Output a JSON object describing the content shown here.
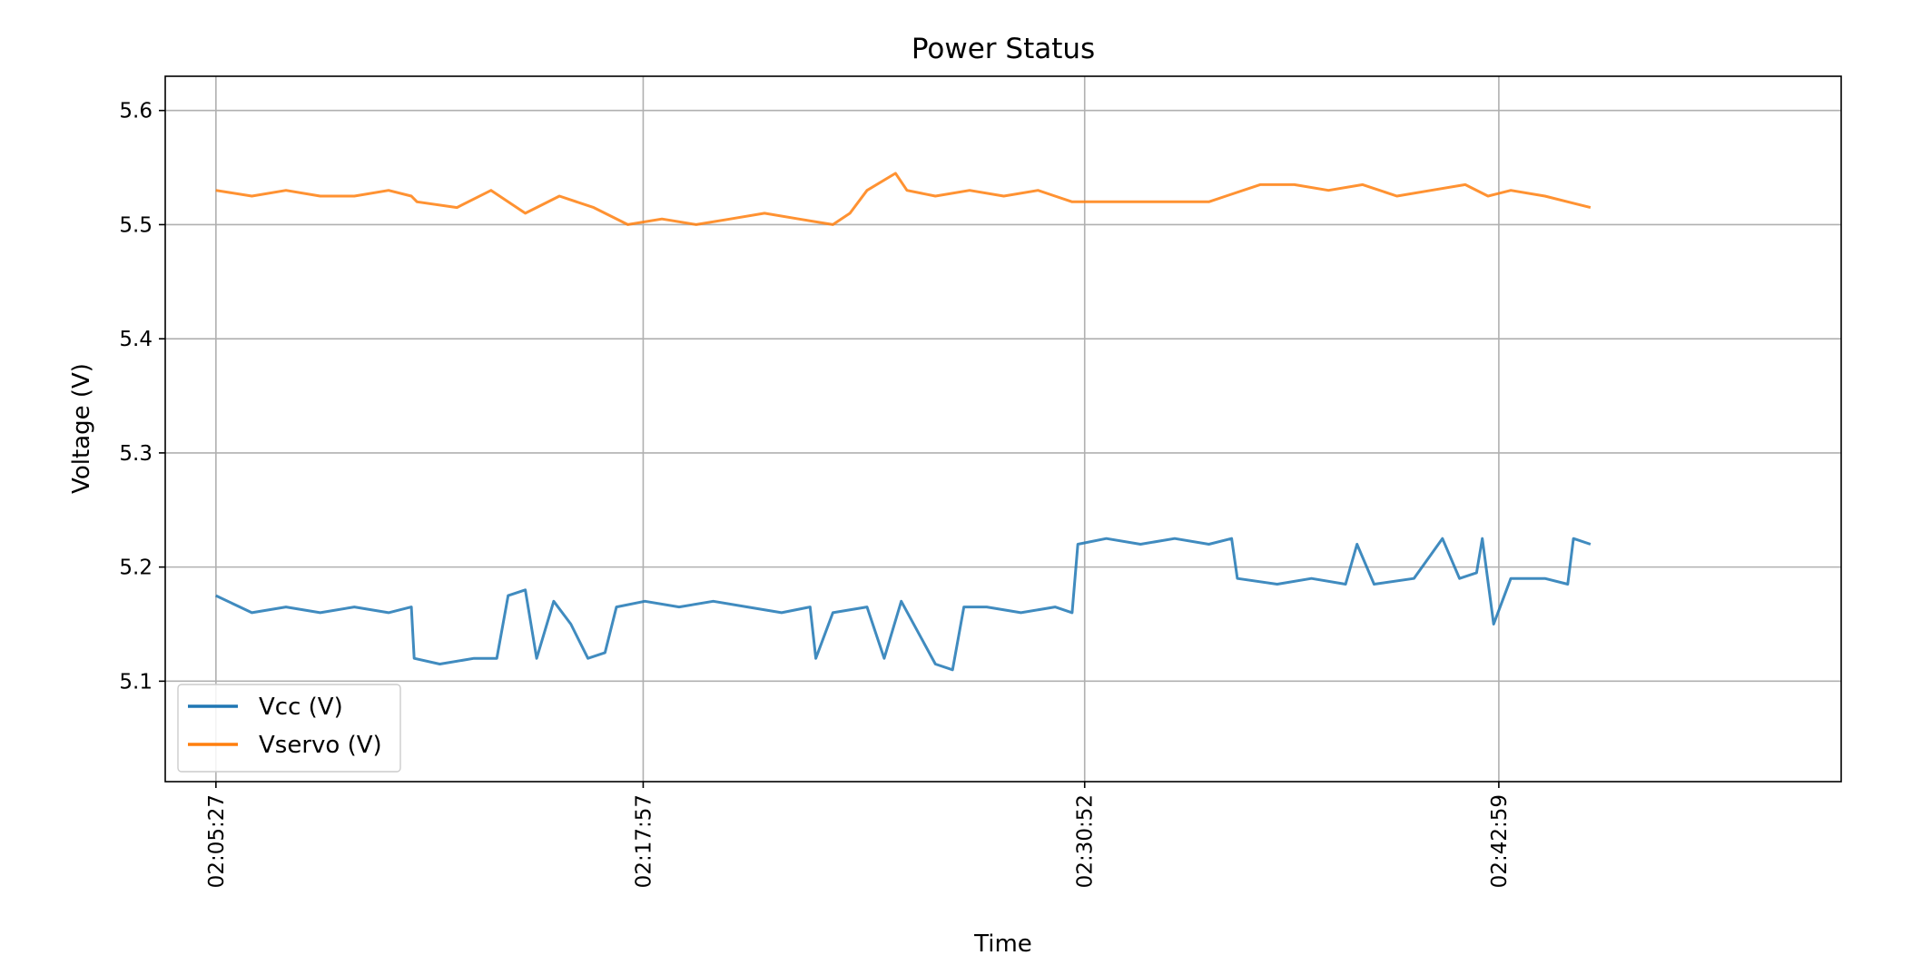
{
  "chart_data": {
    "type": "line",
    "title": "Power Status",
    "xlabel": "Time",
    "ylabel": "Voltage (V)",
    "x_range": [
      "02:03:58",
      "02:53:00"
    ],
    "ylim": [
      5.012,
      5.63
    ],
    "x_ticks": [
      "02:05:27",
      "02:17:57",
      "02:30:52",
      "02:42:59"
    ],
    "y_ticks": [
      "5.1",
      "5.2",
      "5.3",
      "5.4",
      "5.5",
      "5.6"
    ],
    "grid": true,
    "legend_position": "lower-left",
    "series": [
      {
        "name": "Vcc (V)",
        "color": "#1f77b4",
        "points": [
          [
            "02:05:27",
            5.175
          ],
          [
            "02:06:30",
            5.16
          ],
          [
            "02:07:30",
            5.165
          ],
          [
            "02:08:30",
            5.16
          ],
          [
            "02:09:30",
            5.165
          ],
          [
            "02:10:30",
            5.16
          ],
          [
            "02:11:10",
            5.165
          ],
          [
            "02:11:15",
            5.12
          ],
          [
            "02:12:00",
            5.115
          ],
          [
            "02:13:00",
            5.12
          ],
          [
            "02:13:40",
            5.12
          ],
          [
            "02:14:00",
            5.175
          ],
          [
            "02:14:30",
            5.18
          ],
          [
            "02:14:50",
            5.12
          ],
          [
            "02:15:20",
            5.17
          ],
          [
            "02:15:50",
            5.15
          ],
          [
            "02:16:20",
            5.12
          ],
          [
            "02:16:50",
            5.125
          ],
          [
            "02:17:10",
            5.165
          ],
          [
            "02:18:00",
            5.17
          ],
          [
            "02:19:00",
            5.165
          ],
          [
            "02:20:00",
            5.17
          ],
          [
            "02:21:00",
            5.165
          ],
          [
            "02:22:00",
            5.16
          ],
          [
            "02:22:50",
            5.165
          ],
          [
            "02:23:00",
            5.12
          ],
          [
            "02:23:30",
            5.16
          ],
          [
            "02:24:30",
            5.165
          ],
          [
            "02:25:00",
            5.12
          ],
          [
            "02:25:30",
            5.17
          ],
          [
            "02:26:30",
            5.115
          ],
          [
            "02:27:00",
            5.11
          ],
          [
            "02:27:20",
            5.165
          ],
          [
            "02:28:00",
            5.165
          ],
          [
            "02:29:00",
            5.16
          ],
          [
            "02:30:00",
            5.165
          ],
          [
            "02:30:30",
            5.16
          ],
          [
            "02:30:40",
            5.22
          ],
          [
            "02:31:30",
            5.225
          ],
          [
            "02:32:30",
            5.22
          ],
          [
            "02:33:30",
            5.225
          ],
          [
            "02:34:30",
            5.22
          ],
          [
            "02:35:10",
            5.225
          ],
          [
            "02:35:20",
            5.19
          ],
          [
            "02:36:30",
            5.185
          ],
          [
            "02:37:30",
            5.19
          ],
          [
            "02:38:30",
            5.185
          ],
          [
            "02:38:50",
            5.22
          ],
          [
            "02:39:20",
            5.185
          ],
          [
            "02:40:30",
            5.19
          ],
          [
            "02:41:20",
            5.225
          ],
          [
            "02:41:50",
            5.19
          ],
          [
            "02:42:20",
            5.195
          ],
          [
            "02:42:30",
            5.225
          ],
          [
            "02:42:50",
            5.15
          ],
          [
            "02:43:20",
            5.19
          ],
          [
            "02:44:20",
            5.19
          ],
          [
            "02:45:00",
            5.185
          ],
          [
            "02:45:10",
            5.225
          ],
          [
            "02:45:40",
            5.22
          ]
        ]
      },
      {
        "name": "Vservo (V)",
        "color": "#ff7f0e",
        "points": [
          [
            "02:05:27",
            5.53
          ],
          [
            "02:06:30",
            5.525
          ],
          [
            "02:07:30",
            5.53
          ],
          [
            "02:08:30",
            5.525
          ],
          [
            "02:09:30",
            5.525
          ],
          [
            "02:10:30",
            5.53
          ],
          [
            "02:11:10",
            5.525
          ],
          [
            "02:11:20",
            5.52
          ],
          [
            "02:12:30",
            5.515
          ],
          [
            "02:13:30",
            5.53
          ],
          [
            "02:14:30",
            5.51
          ],
          [
            "02:15:30",
            5.525
          ],
          [
            "02:16:30",
            5.515
          ],
          [
            "02:17:30",
            5.5
          ],
          [
            "02:18:30",
            5.505
          ],
          [
            "02:19:30",
            5.5
          ],
          [
            "02:20:30",
            5.505
          ],
          [
            "02:21:30",
            5.51
          ],
          [
            "02:22:30",
            5.505
          ],
          [
            "02:23:30",
            5.5
          ],
          [
            "02:24:00",
            5.51
          ],
          [
            "02:24:30",
            5.53
          ],
          [
            "02:25:20",
            5.545
          ],
          [
            "02:25:40",
            5.53
          ],
          [
            "02:26:30",
            5.525
          ],
          [
            "02:27:30",
            5.53
          ],
          [
            "02:28:30",
            5.525
          ],
          [
            "02:29:30",
            5.53
          ],
          [
            "02:30:00",
            5.525
          ],
          [
            "02:30:30",
            5.52
          ],
          [
            "02:31:30",
            5.52
          ],
          [
            "02:32:30",
            5.52
          ],
          [
            "02:33:30",
            5.52
          ],
          [
            "02:34:30",
            5.52
          ],
          [
            "02:35:00",
            5.525
          ],
          [
            "02:36:00",
            5.535
          ],
          [
            "02:37:00",
            5.535
          ],
          [
            "02:38:00",
            5.53
          ],
          [
            "02:39:00",
            5.535
          ],
          [
            "02:40:00",
            5.525
          ],
          [
            "02:41:00",
            5.53
          ],
          [
            "02:42:00",
            5.535
          ],
          [
            "02:42:40",
            5.525
          ],
          [
            "02:43:20",
            5.53
          ],
          [
            "02:44:20",
            5.525
          ],
          [
            "02:45:00",
            5.52
          ],
          [
            "02:45:40",
            5.515
          ]
        ]
      }
    ]
  }
}
